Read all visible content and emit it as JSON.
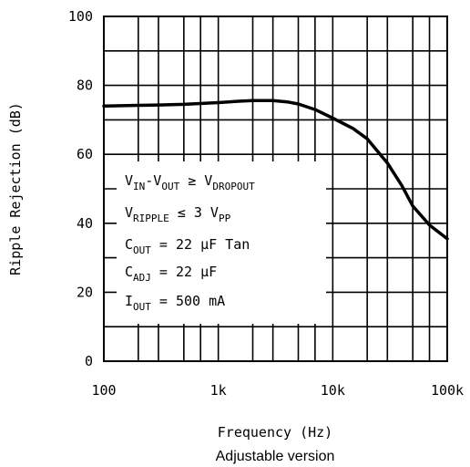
{
  "chart_data": {
    "type": "line",
    "title": "",
    "caption": "Adjustable version",
    "xlabel": "Frequency (Hz)",
    "ylabel": "Ripple Rejection (dB)",
    "xscale": "log",
    "xlim": [
      100,
      100000
    ],
    "ylim": [
      0,
      100
    ],
    "x_tick_labels": [
      "100",
      "1k",
      "10k",
      "100k"
    ],
    "y_tick_labels": [
      "0",
      "20",
      "40",
      "60",
      "80",
      "100"
    ],
    "grid": true,
    "series": [
      {
        "x": [
          100,
          200,
          300,
          500,
          1000,
          1500,
          2000,
          3000,
          4000,
          5000,
          7000,
          10000,
          15000,
          20000,
          30000,
          40000,
          50000,
          70000,
          100000
        ],
        "y": [
          74,
          74.2,
          74.3,
          74.5,
          75,
          75.4,
          75.6,
          75.6,
          75.2,
          74.6,
          73,
          70.5,
          67.5,
          64.5,
          57.5,
          51,
          45,
          39.5,
          35.5
        ]
      }
    ],
    "annotations": [
      {
        "base": "V",
        "sub": "IN",
        "rest": "-V",
        "sub2": "OUT",
        "rest2": " ≥ V",
        "sub3": "DROPOUT"
      },
      {
        "base": "V",
        "sub": "RIPPLE",
        "rest": " ≤ 3 V",
        "sub2": "PP"
      },
      {
        "base": "C",
        "sub": "OUT",
        "rest": " = 22 μF Tan"
      },
      {
        "base": "C",
        "sub": "ADJ",
        "rest": " = 22 μF"
      },
      {
        "base": "I",
        "sub": "OUT",
        "rest": " = 500 mA"
      }
    ]
  }
}
